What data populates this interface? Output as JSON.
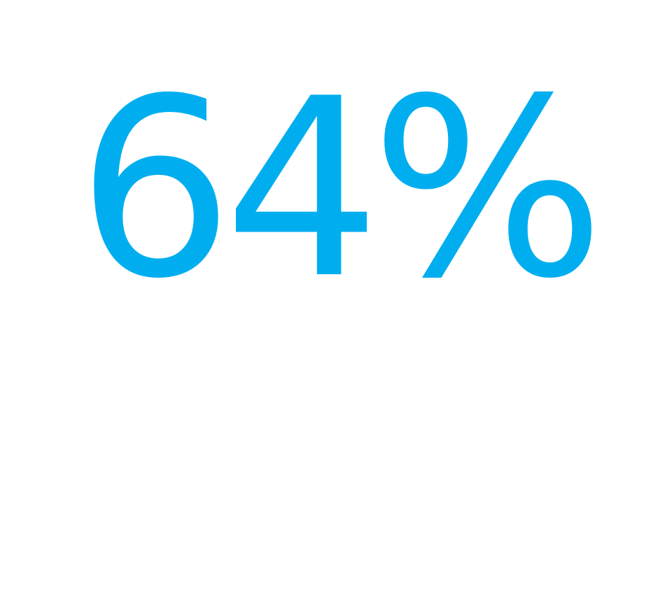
{
  "statistic": {
    "value": "64%",
    "color": "#00aeef"
  }
}
